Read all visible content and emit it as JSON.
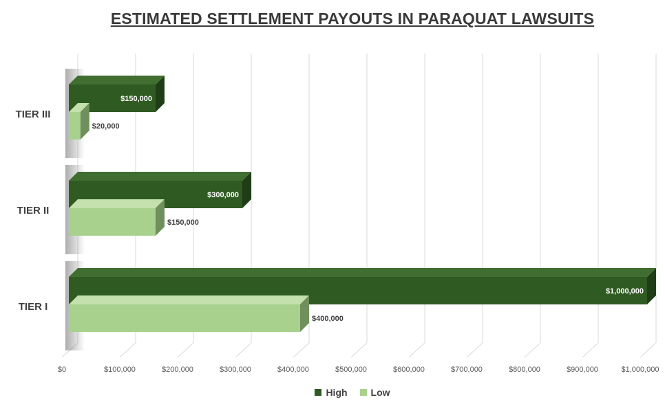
{
  "chart_data": {
    "type": "bar",
    "orientation": "horizontal",
    "title": "ESTIMATED SETTLEMENT PAYOUTS IN PARAQUAT LAWSUITS",
    "categories": [
      "TIER I",
      "TIER II",
      "TIER III"
    ],
    "series": [
      {
        "name": "High",
        "color": "#2f5a22",
        "values": [
          1000000,
          300000,
          150000
        ],
        "labels": [
          "$1,000,000",
          "$300,000",
          "$150,000"
        ]
      },
      {
        "name": "Low",
        "color": "#a9d18e",
        "values": [
          400000,
          150000,
          20000
        ],
        "labels": [
          "$400,000",
          "$150,000",
          "$20,000"
        ]
      }
    ],
    "xlim": [
      0,
      1000000
    ],
    "ticks": [
      0,
      100000,
      200000,
      300000,
      400000,
      500000,
      600000,
      700000,
      800000,
      900000,
      1000000
    ],
    "tick_labels": [
      "$0",
      "$100,000",
      "$200,000",
      "$300,000",
      "$400,000",
      "$500,000",
      "$600,000",
      "$700,000",
      "$800,000",
      "$900,000",
      "$1,000,000"
    ],
    "grid": true,
    "legend": "bottom"
  }
}
